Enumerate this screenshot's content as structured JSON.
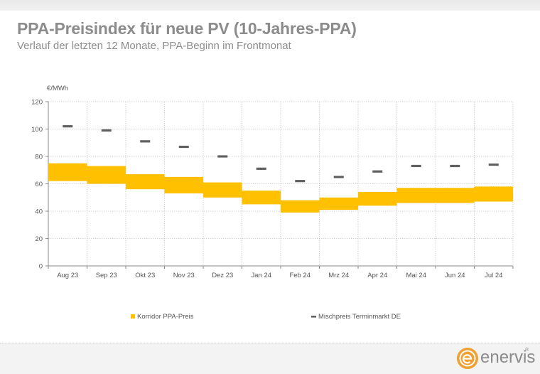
{
  "header": {
    "title": "PPA-Preisindex für neue PV (10-Jahres-PPA)",
    "subtitle": "Verlauf der letzten 12 Monate, PPA-Beginn im Frontmonat"
  },
  "logo": {
    "text": "enervis",
    "registered": "®",
    "icon": "enervis-e-logo-icon",
    "color": "#f0a030"
  },
  "chart_data": {
    "type": "bar",
    "unit_label": "€/MWh",
    "categories": [
      "Aug 23",
      "Sep 23",
      "Okt 23",
      "Nov 23",
      "Dez 23",
      "Jan 24",
      "Feb 24",
      "Mrz 24",
      "Apr 24",
      "Mai 24",
      "Jun 24",
      "Jul 24"
    ],
    "ylim": [
      0,
      120
    ],
    "yticks": [
      0,
      20,
      40,
      60,
      80,
      100,
      120
    ],
    "grid": true,
    "legend_position": "bottom",
    "series": [
      {
        "name": "Korridor PPA-Preis",
        "kind": "range-bar",
        "color": "#ffc000",
        "low": [
          62,
          60,
          56,
          53,
          50,
          45,
          39,
          41,
          44,
          46,
          46,
          47
        ],
        "high": [
          75,
          73,
          67,
          65,
          61,
          55,
          48,
          50,
          54,
          57,
          57,
          58
        ]
      },
      {
        "name": "Mischpreis Terminmarkt DE",
        "kind": "marker",
        "color": "#606060",
        "values": [
          102,
          99,
          91,
          87,
          80,
          71,
          62,
          65,
          69,
          73,
          73,
          74
        ]
      }
    ]
  }
}
